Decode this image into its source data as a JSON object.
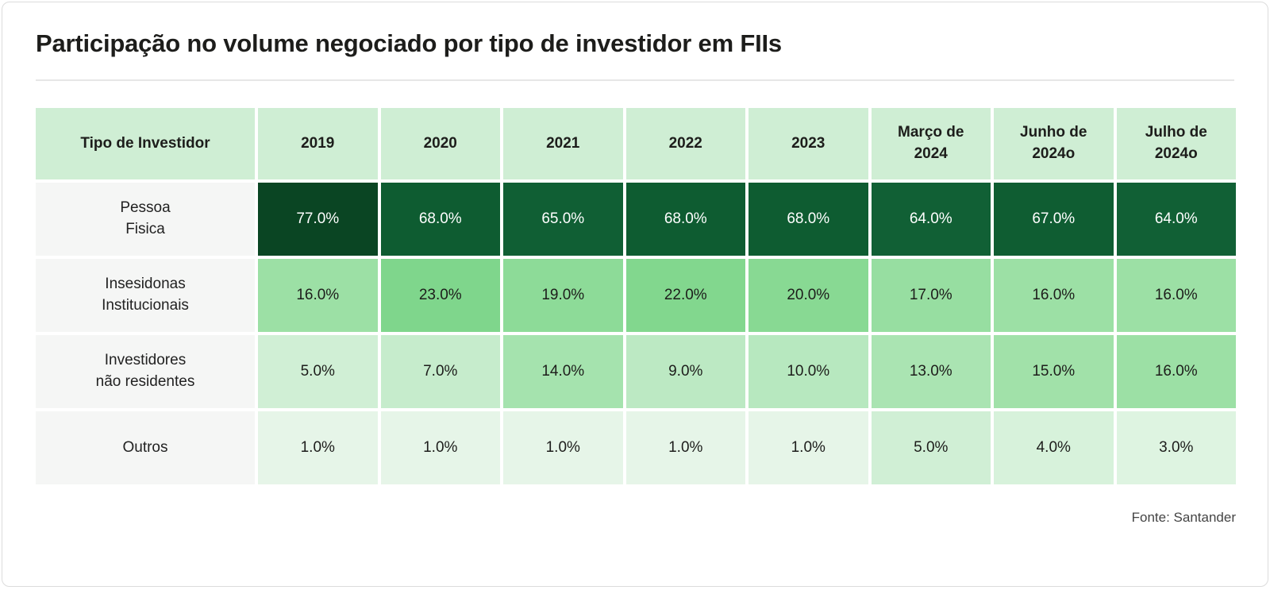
{
  "page": {
    "title": "Participação no volume negociado por tipo de investidor em FIIs",
    "source": "Fonte: Santander"
  },
  "chart_data": {
    "type": "heatmap",
    "title": "Participação no volume negociado por tipo de investidor em FIIs",
    "row_header": "Tipo de Investidor",
    "columns": [
      "2019",
      "2020",
      "2021",
      "2022",
      "2023",
      "Março de 2024",
      "Junho de 2024o",
      "Julho de 2024o"
    ],
    "rows": [
      {
        "label": [
          "Pessoa",
          "Fisica"
        ],
        "values": [
          77.0,
          68.0,
          65.0,
          68.0,
          68.0,
          64.0,
          67.0,
          64.0
        ]
      },
      {
        "label": [
          "Insesidonas",
          "Institucionais"
        ],
        "values": [
          16.0,
          23.0,
          19.0,
          22.0,
          20.0,
          17.0,
          16.0,
          16.0
        ]
      },
      {
        "label": [
          "Investidores",
          "não residentes"
        ],
        "values": [
          5.0,
          7.0,
          14.0,
          9.0,
          10.0,
          13.0,
          15.0,
          16.0
        ]
      },
      {
        "label": [
          "Outros"
        ],
        "values": [
          1.0,
          1.0,
          1.0,
          1.0,
          1.0,
          5.0,
          4.0,
          3.0
        ]
      }
    ],
    "value_suffix": "%",
    "value_decimals": 1,
    "legend": "none",
    "colors": {
      "header_bg": "#cfeed4",
      "label_bg": "#f5f6f5",
      "dark_text": "#1d1d1b",
      "light_text": "#ffffff",
      "light_text_threshold": 50,
      "scale": [
        {
          "v": 1,
          "c": "#e6f5e8"
        },
        {
          "v": 3,
          "c": "#def4e1"
        },
        {
          "v": 5,
          "c": "#d0efd5"
        },
        {
          "v": 7,
          "c": "#c6eccc"
        },
        {
          "v": 10,
          "c": "#b7e8bf"
        },
        {
          "v": 16,
          "c": "#9ce0a5"
        },
        {
          "v": 20,
          "c": "#88d993"
        },
        {
          "v": 23,
          "c": "#7fd68c"
        },
        {
          "v": 64,
          "c": "#116035"
        },
        {
          "v": 68,
          "c": "#0e5c31"
        },
        {
          "v": 77,
          "c": "#0a4523"
        }
      ]
    }
  }
}
